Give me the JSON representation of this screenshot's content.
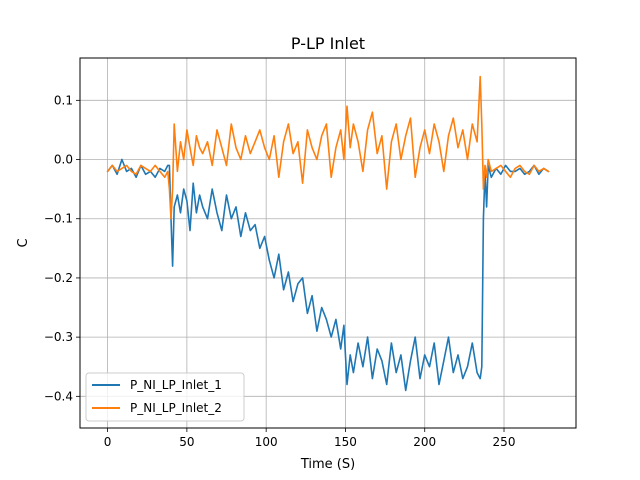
{
  "chart_data": {
    "type": "line",
    "title": "P-LP Inlet",
    "xlabel": "Time (S)",
    "ylabel": "C",
    "xlim": [
      -17.4,
      295.4
    ],
    "ylim": [
      -0.4535,
      0.1715
    ],
    "xticks": [
      0,
      50,
      100,
      150,
      200,
      250
    ],
    "xtick_labels": [
      "0",
      "50",
      "100",
      "150",
      "200",
      "250"
    ],
    "yticks": [
      -0.4,
      -0.3,
      -0.2,
      -0.1,
      0.0,
      0.1
    ],
    "ytick_labels": [
      "−0.4",
      "−0.3",
      "−0.2",
      "−0.1",
      "0.0",
      "0.1"
    ],
    "grid": true,
    "legend_position": "lower-left",
    "series": [
      {
        "name": "P_NI_LP_Inlet_1",
        "color": "#1f77b4",
        "x": [
          0,
          3,
          6,
          9,
          12,
          15,
          18,
          21,
          24,
          27,
          30,
          33,
          36,
          38,
          39,
          40,
          41,
          42,
          44,
          46,
          48,
          50,
          52,
          54,
          56,
          58,
          60,
          63,
          66,
          69,
          72,
          75,
          78,
          81,
          84,
          87,
          90,
          93,
          96,
          99,
          102,
          105,
          108,
          111,
          114,
          117,
          120,
          123,
          126,
          129,
          132,
          135,
          138,
          141,
          144,
          147,
          149,
          151,
          153,
          155,
          158,
          161,
          164,
          167,
          170,
          173,
          176,
          179,
          182,
          185,
          188,
          191,
          194,
          197,
          200,
          203,
          206,
          209,
          212,
          215,
          218,
          221,
          224,
          227,
          230,
          233,
          235,
          236,
          237,
          238,
          239,
          240,
          242,
          245,
          248,
          251,
          254,
          257,
          260,
          263,
          266,
          269,
          272,
          275,
          278
        ],
        "y": [
          -0.02,
          -0.01,
          -0.025,
          0.0,
          -0.02,
          -0.015,
          -0.03,
          -0.01,
          -0.025,
          -0.02,
          -0.03,
          -0.015,
          -0.02,
          -0.01,
          -0.01,
          -0.1,
          -0.18,
          -0.08,
          -0.06,
          -0.09,
          -0.05,
          -0.07,
          -0.12,
          -0.04,
          -0.09,
          -0.06,
          -0.08,
          -0.1,
          -0.05,
          -0.09,
          -0.12,
          -0.06,
          -0.1,
          -0.08,
          -0.13,
          -0.09,
          -0.12,
          -0.11,
          -0.15,
          -0.13,
          -0.17,
          -0.2,
          -0.16,
          -0.22,
          -0.19,
          -0.24,
          -0.21,
          -0.2,
          -0.26,
          -0.23,
          -0.29,
          -0.25,
          -0.27,
          -0.3,
          -0.27,
          -0.32,
          -0.28,
          -0.38,
          -0.33,
          -0.36,
          -0.31,
          -0.35,
          -0.3,
          -0.37,
          -0.32,
          -0.34,
          -0.38,
          -0.31,
          -0.36,
          -0.33,
          -0.39,
          -0.34,
          -0.3,
          -0.37,
          -0.33,
          -0.35,
          -0.31,
          -0.38,
          -0.34,
          -0.3,
          -0.36,
          -0.33,
          -0.37,
          -0.35,
          -0.31,
          -0.36,
          -0.37,
          -0.35,
          -0.1,
          -0.02,
          -0.08,
          -0.01,
          -0.03,
          -0.015,
          -0.025,
          -0.01,
          -0.02,
          -0.02,
          -0.015,
          -0.025,
          -0.02,
          -0.01,
          -0.025,
          -0.015,
          -0.02
        ]
      },
      {
        "name": "P_NI_LP_Inlet_2",
        "color": "#ff7f0e",
        "x": [
          0,
          3,
          6,
          9,
          12,
          15,
          18,
          21,
          24,
          27,
          30,
          33,
          36,
          38,
          39,
          40,
          41,
          42,
          44,
          46,
          48,
          50,
          52,
          54,
          56,
          58,
          60,
          63,
          66,
          69,
          72,
          75,
          78,
          81,
          84,
          87,
          90,
          93,
          96,
          99,
          102,
          105,
          108,
          111,
          114,
          117,
          120,
          123,
          126,
          129,
          132,
          135,
          138,
          141,
          144,
          147,
          149,
          151,
          153,
          155,
          158,
          161,
          164,
          167,
          170,
          173,
          176,
          179,
          182,
          185,
          188,
          191,
          194,
          197,
          200,
          203,
          206,
          209,
          212,
          215,
          218,
          221,
          224,
          227,
          230,
          233,
          235,
          236,
          237,
          238,
          239,
          240,
          242,
          245,
          248,
          251,
          254,
          257,
          260,
          263,
          266,
          269,
          272,
          275,
          278
        ],
        "y": [
          -0.02,
          -0.01,
          -0.02,
          -0.015,
          -0.01,
          -0.02,
          -0.025,
          -0.01,
          -0.015,
          -0.02,
          -0.01,
          -0.02,
          -0.03,
          -0.02,
          -0.05,
          -0.1,
          -0.05,
          0.06,
          -0.02,
          0.03,
          0.0,
          0.05,
          0.02,
          -0.01,
          0.04,
          0.02,
          0.01,
          0.03,
          -0.01,
          0.05,
          0.02,
          -0.01,
          0.06,
          0.02,
          0.0,
          0.04,
          0.01,
          0.03,
          0.05,
          0.02,
          0.0,
          0.04,
          -0.03,
          0.03,
          0.06,
          0.01,
          0.03,
          -0.04,
          0.05,
          0.02,
          0.0,
          0.04,
          0.06,
          -0.03,
          0.02,
          0.05,
          0.0,
          0.09,
          0.02,
          0.06,
          0.03,
          -0.02,
          0.05,
          0.08,
          0.01,
          0.04,
          -0.05,
          0.03,
          0.06,
          0.0,
          0.04,
          0.07,
          -0.03,
          0.02,
          0.05,
          0.01,
          0.06,
          0.03,
          -0.02,
          0.04,
          0.07,
          0.02,
          0.05,
          0.0,
          0.06,
          0.03,
          0.14,
          0.06,
          -0.05,
          -0.01,
          -0.03,
          0.0,
          -0.02,
          -0.015,
          -0.01,
          -0.02,
          -0.03,
          -0.015,
          -0.01,
          -0.02,
          -0.025,
          -0.01,
          -0.02,
          -0.015,
          -0.02
        ]
      }
    ]
  }
}
